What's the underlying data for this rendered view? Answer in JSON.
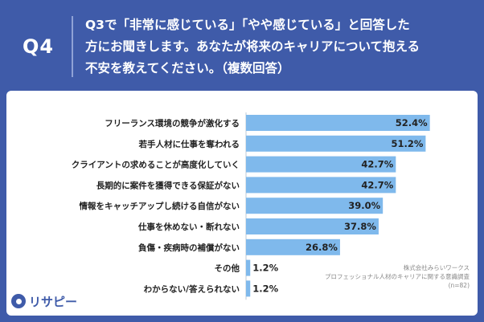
{
  "header": {
    "qnum": "Q4",
    "question_line1": "Q3で「非常に感じている」「やや感じている」と回答した",
    "question_line2": "方にお聞きします。あなたが将来のキャリアについて抱える",
    "question_line3": "不安を教えてください。（複数回答）"
  },
  "source": {
    "line1": "株式会社みらいワークス",
    "line2": "プロフェッショナル人材のキャリアに関する意識調査",
    "line3": "(n=82)"
  },
  "logo": {
    "text": "リサピー"
  },
  "colors": {
    "bar": "#7fb9ec",
    "axis": "#bcc8d6",
    "header_bg": "#3f5ba9"
  },
  "chart_data": {
    "type": "bar",
    "orientation": "horizontal",
    "categories": [
      "フリーランス環境の競争が激化する",
      "若手人材に仕事を奪われる",
      "クライアントの求めることが高度化していく",
      "長期的に案件を獲得できる保証がない",
      "情報をキャッチアップし続ける自信がない",
      "仕事を休めない・断れない",
      "負傷・疾病時の補償がない",
      "その他",
      "わからない/答えられない"
    ],
    "values": [
      52.4,
      51.2,
      42.7,
      42.7,
      39.0,
      37.8,
      26.8,
      1.2,
      1.2
    ],
    "value_labels": [
      "52.4%",
      "51.2%",
      "42.7%",
      "42.7%",
      "39.0%",
      "37.8%",
      "26.8%",
      "1.2%",
      "1.2%"
    ],
    "xlim": [
      0,
      55
    ]
  }
}
